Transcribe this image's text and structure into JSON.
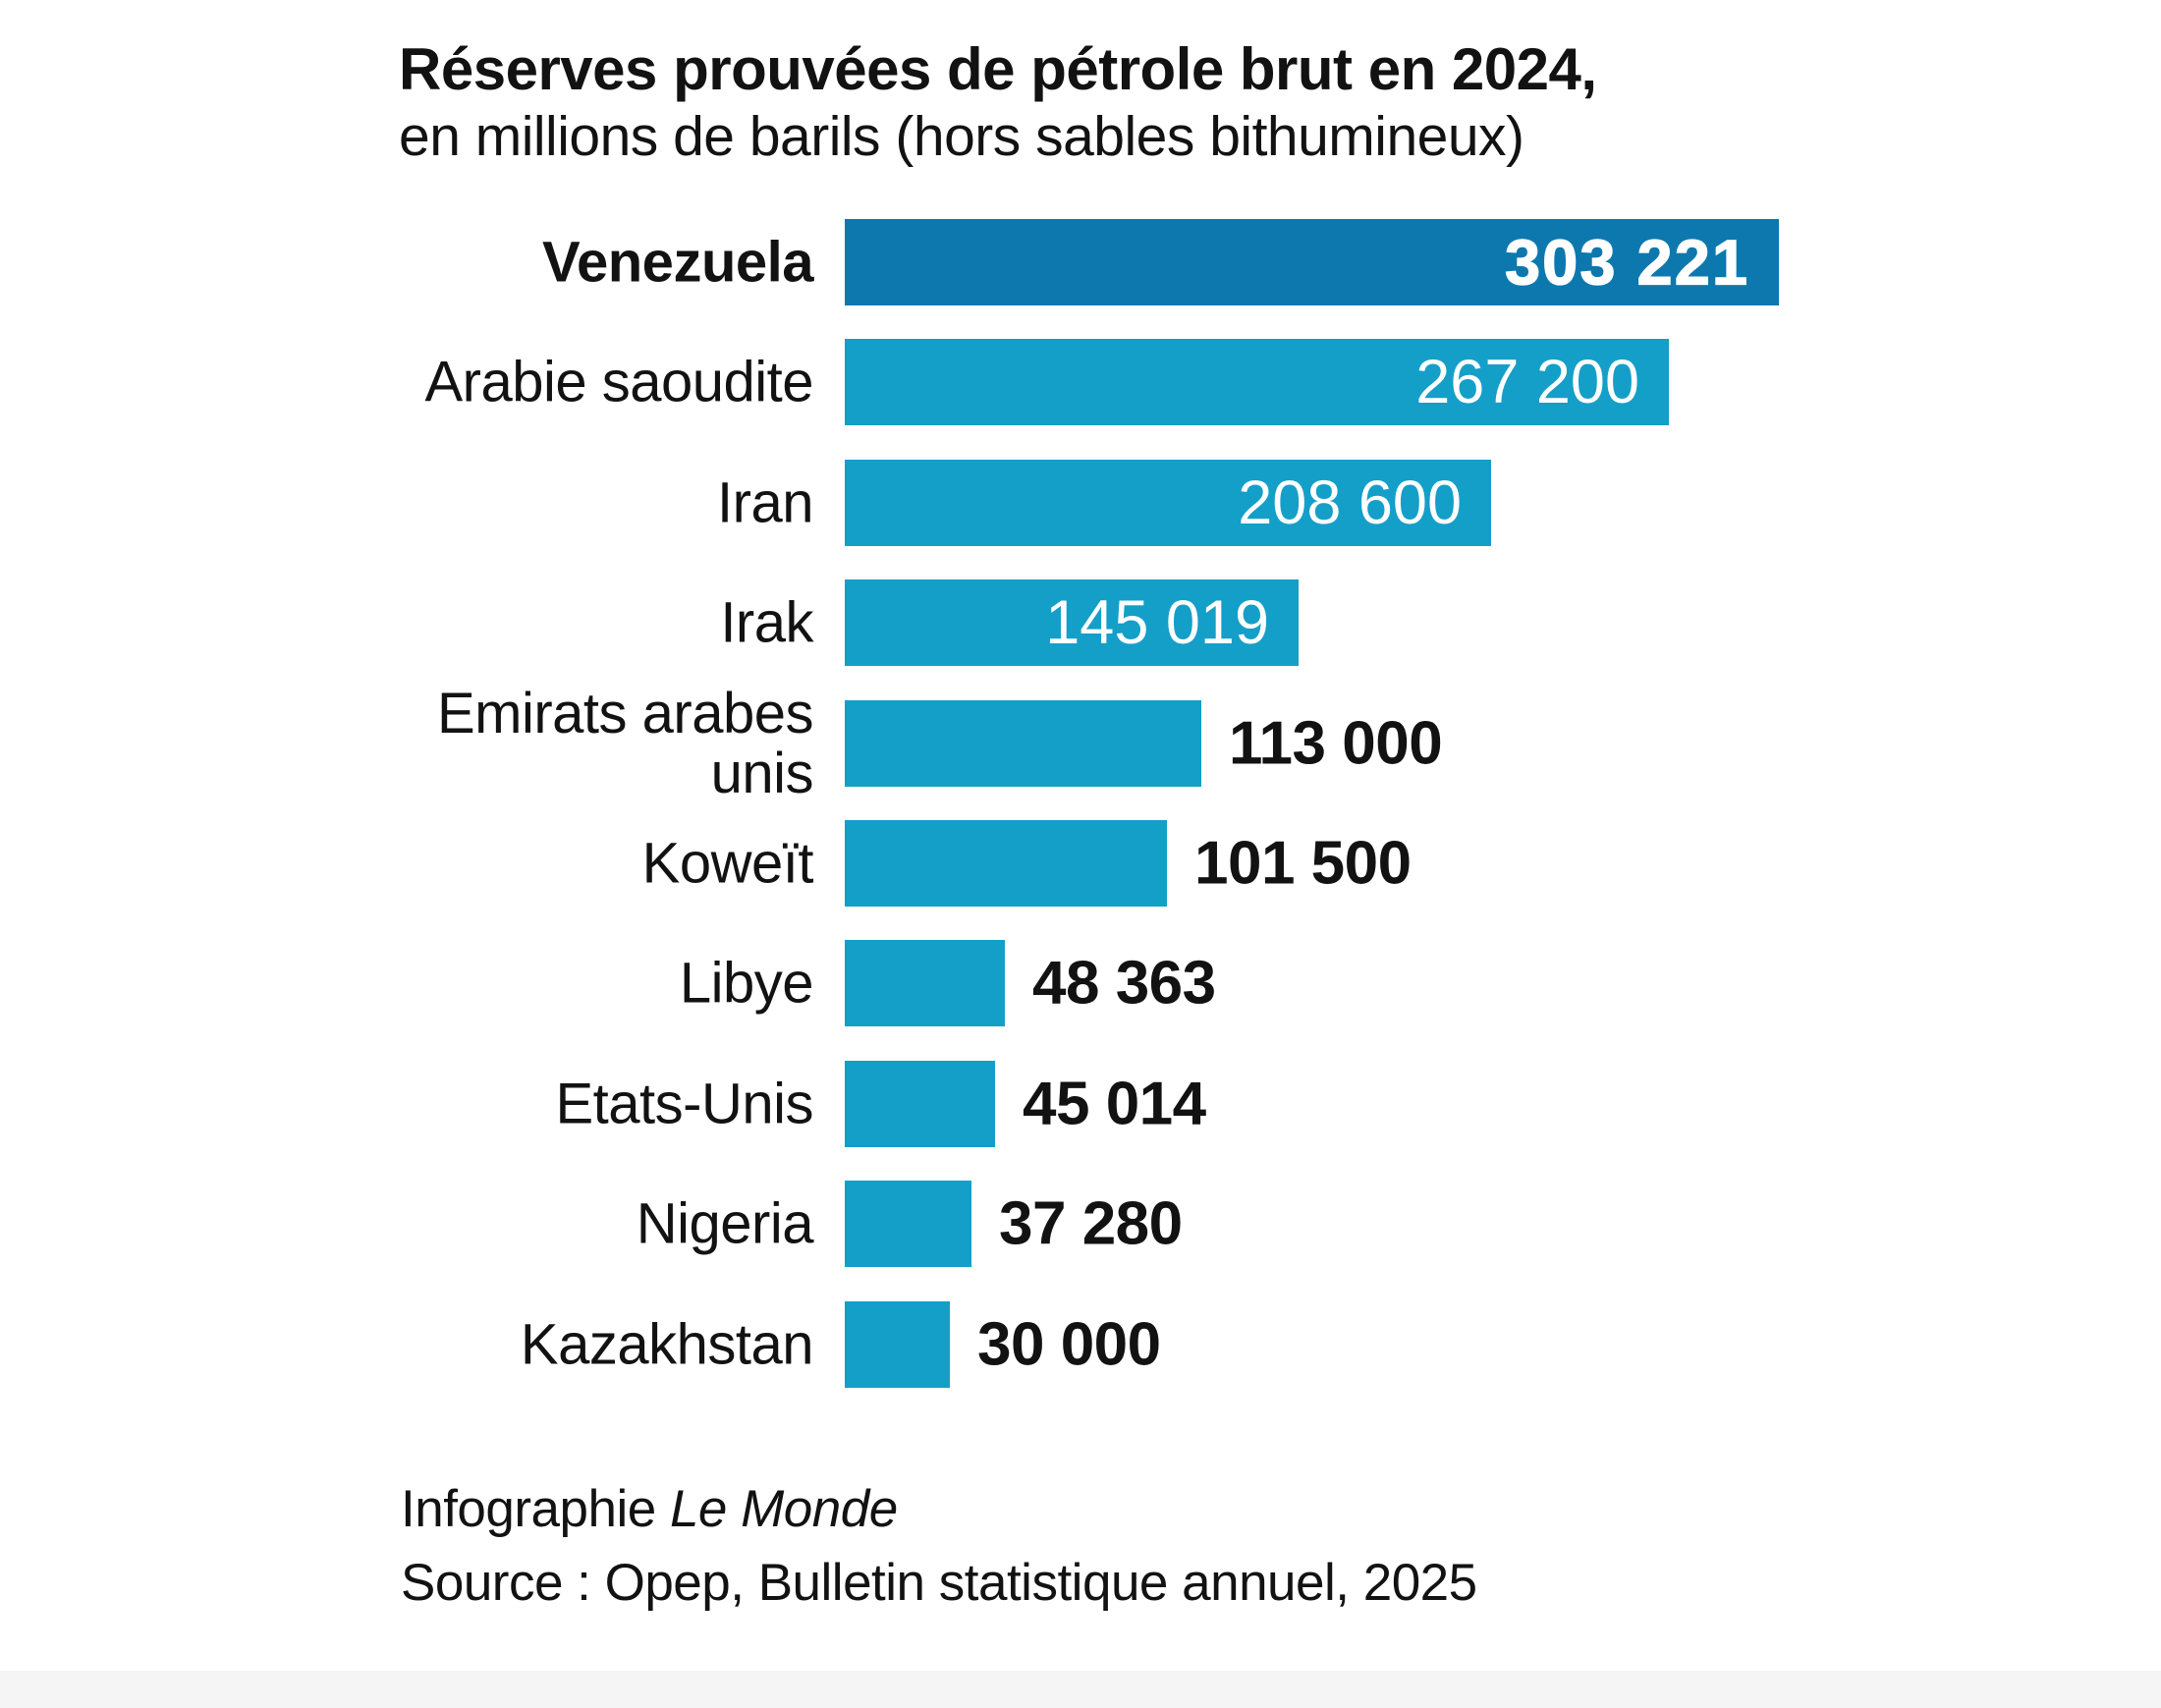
{
  "chart_data": {
    "type": "bar",
    "orientation": "horizontal",
    "title": "Réserves prouvées de pétrole brut en 2024,",
    "subtitle": "en millions de barils (hors sables bithumineux)",
    "categories": [
      "Venezuela",
      "Arabie saoudite",
      "Iran",
      "Irak",
      "Emirats arabes unis",
      "Koweït",
      "Libye",
      "Etats-Unis",
      "Nigeria",
      "Kazakhstan"
    ],
    "values": [
      303221,
      267200,
      208600,
      145019,
      113000,
      101500,
      48363,
      45014,
      37280,
      30000
    ],
    "value_labels": [
      "303 221",
      "267 200",
      "208 600",
      "145 019",
      "113 000",
      "101 500",
      "48 363",
      "45 014",
      "37 280",
      "30 000"
    ],
    "value_position": [
      "inside",
      "inside",
      "inside",
      "inside",
      "outside",
      "outside",
      "outside",
      "outside",
      "outside",
      "outside"
    ],
    "highlight_index": 0,
    "xlim": [
      0,
      310000
    ],
    "grid": false,
    "legend": false,
    "colors": {
      "highlight_bar": "#0d78ad",
      "bar": "#149fc8",
      "value_inside": "#ffffff",
      "value_outside": "#121212"
    }
  },
  "footer": {
    "credit_prefix": "Infographie ",
    "credit_name": "Le Monde",
    "source": "Source : Opep, Bulletin statistique annuel, 2025"
  }
}
